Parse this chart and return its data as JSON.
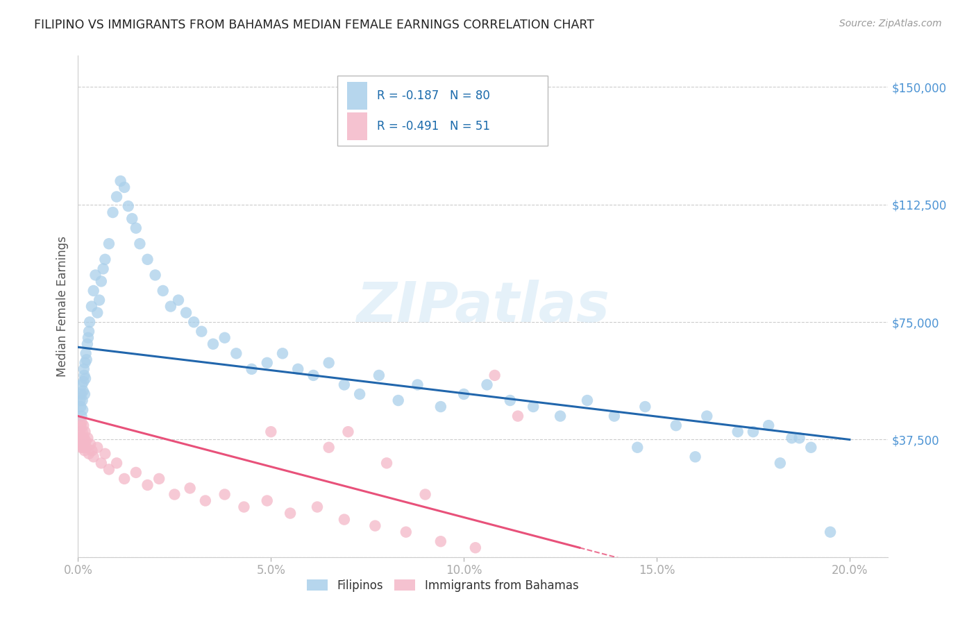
{
  "title": "FILIPINO VS IMMIGRANTS FROM BAHAMAS MEDIAN FEMALE EARNINGS CORRELATION CHART",
  "source": "Source: ZipAtlas.com",
  "ylabel": "Median Female Earnings",
  "xlabel_ticks": [
    "0.0%",
    "5.0%",
    "10.0%",
    "15.0%",
    "20.0%"
  ],
  "xlabel_vals": [
    0.0,
    5.0,
    10.0,
    15.0,
    20.0
  ],
  "yticks": [
    0,
    37500,
    75000,
    112500,
    150000
  ],
  "ytick_labels": [
    "",
    "$37,500",
    "$75,000",
    "$112,500",
    "$150,000"
  ],
  "ylim": [
    0,
    160000
  ],
  "xlim": [
    0.0,
    21.0
  ],
  "watermark_text": "ZIPatlas",
  "blue_color": "#aacfea",
  "pink_color": "#f4b8c8",
  "blue_line_color": "#2166ac",
  "pink_line_color": "#e8517a",
  "axis_color": "#4d94d4",
  "legend_text_color": "#1a6aab",
  "R_blue": -0.187,
  "N_blue": 80,
  "R_pink": -0.491,
  "N_pink": 51,
  "blue_scatter_x": [
    0.05,
    0.07,
    0.08,
    0.09,
    0.1,
    0.11,
    0.12,
    0.13,
    0.14,
    0.15,
    0.16,
    0.17,
    0.18,
    0.19,
    0.2,
    0.22,
    0.24,
    0.26,
    0.28,
    0.3,
    0.35,
    0.4,
    0.45,
    0.5,
    0.55,
    0.6,
    0.65,
    0.7,
    0.8,
    0.9,
    1.0,
    1.1,
    1.2,
    1.3,
    1.4,
    1.5,
    1.6,
    1.8,
    2.0,
    2.2,
    2.4,
    2.6,
    2.8,
    3.0,
    3.2,
    3.5,
    3.8,
    4.1,
    4.5,
    4.9,
    5.3,
    5.7,
    6.1,
    6.5,
    6.9,
    7.3,
    7.8,
    8.3,
    8.8,
    9.4,
    10.0,
    10.6,
    11.2,
    11.8,
    12.5,
    13.2,
    13.9,
    14.7,
    15.5,
    16.3,
    17.1,
    17.9,
    18.7,
    14.5,
    16.0,
    17.5,
    18.5,
    19.0,
    19.5,
    18.2
  ],
  "blue_scatter_y": [
    50000,
    48000,
    52000,
    45000,
    55000,
    50000,
    47000,
    53000,
    56000,
    60000,
    58000,
    52000,
    62000,
    57000,
    65000,
    63000,
    68000,
    70000,
    72000,
    75000,
    80000,
    85000,
    90000,
    78000,
    82000,
    88000,
    92000,
    95000,
    100000,
    110000,
    115000,
    120000,
    118000,
    112000,
    108000,
    105000,
    100000,
    95000,
    90000,
    85000,
    80000,
    82000,
    78000,
    75000,
    72000,
    68000,
    70000,
    65000,
    60000,
    62000,
    65000,
    60000,
    58000,
    62000,
    55000,
    52000,
    58000,
    50000,
    55000,
    48000,
    52000,
    55000,
    50000,
    48000,
    45000,
    50000,
    45000,
    48000,
    42000,
    45000,
    40000,
    42000,
    38000,
    35000,
    32000,
    40000,
    38000,
    35000,
    8000,
    30000
  ],
  "pink_scatter_x": [
    0.04,
    0.05,
    0.06,
    0.07,
    0.08,
    0.09,
    0.1,
    0.11,
    0.12,
    0.13,
    0.14,
    0.15,
    0.16,
    0.17,
    0.18,
    0.2,
    0.22,
    0.25,
    0.28,
    0.32,
    0.36,
    0.4,
    0.5,
    0.6,
    0.7,
    0.8,
    1.0,
    1.2,
    1.5,
    1.8,
    2.1,
    2.5,
    2.9,
    3.3,
    3.8,
    4.3,
    4.9,
    5.5,
    6.2,
    6.9,
    7.7,
    8.5,
    9.4,
    10.3,
    10.8,
    11.4,
    5.0,
    6.5,
    7.0,
    8.0,
    9.0
  ],
  "pink_scatter_y": [
    38000,
    40000,
    36000,
    42000,
    35000,
    43000,
    37000,
    40000,
    38000,
    35000,
    42000,
    36000,
    38000,
    34000,
    40000,
    37000,
    35000,
    38000,
    33000,
    36000,
    34000,
    32000,
    35000,
    30000,
    33000,
    28000,
    30000,
    25000,
    27000,
    23000,
    25000,
    20000,
    22000,
    18000,
    20000,
    16000,
    18000,
    14000,
    16000,
    12000,
    10000,
    8000,
    5000,
    3000,
    58000,
    45000,
    40000,
    35000,
    40000,
    30000,
    20000
  ],
  "blue_trend_x0": 0.0,
  "blue_trend_y0": 67000,
  "blue_trend_x1": 20.0,
  "blue_trend_y1": 37500,
  "pink_trend_x0": 0.0,
  "pink_trend_y0": 45000,
  "pink_trend_x1": 13.0,
  "pink_trend_y1": 3000,
  "pink_dash_x0": 13.0,
  "pink_dash_x1": 20.0
}
